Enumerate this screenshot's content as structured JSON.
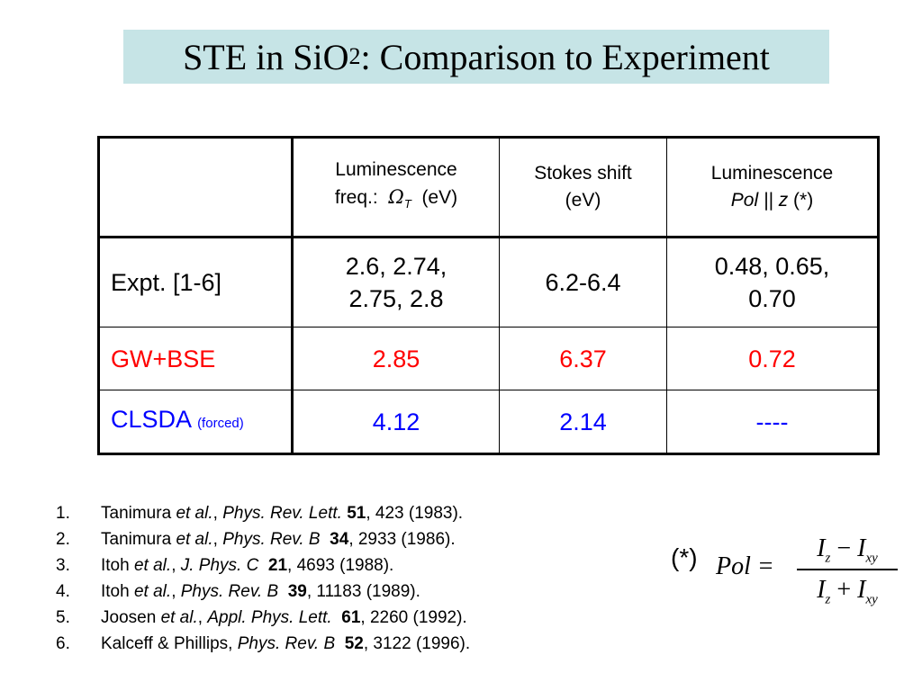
{
  "title": {
    "prefix": "STE in SiO",
    "sub": "2",
    "suffix": ": Comparison to Experiment"
  },
  "table": {
    "headers": {
      "col1_line1": "Luminescence",
      "col1_line2_prefix": "freq.:",
      "col1_symbol": "Ω",
      "col1_symbol_sub": "T",
      "col1_unit": "(eV)",
      "col2_line1": "Stokes shift",
      "col2_line2": "(eV)",
      "col3_line1": "Luminescence",
      "col3_line2_ital": "Pol || z",
      "col3_line2_suffix": "(*)"
    },
    "rows": [
      {
        "label": "Expt. [1-6]",
        "freq_line1": "2.6, 2.74,",
        "freq_line2": "2.75, 2.8",
        "stokes": "6.2-6.4",
        "pol_line1": "0.48, 0.65,",
        "pol_line2": "0.70",
        "color": "#000000"
      },
      {
        "label": "GW+BSE",
        "freq": "2.85",
        "stokes": "6.37",
        "pol": "0.72",
        "color": "#ff0000"
      },
      {
        "label": "CLSDA",
        "label_note": "(forced)",
        "freq": "4.12",
        "stokes": "2.14",
        "pol": "----",
        "color": "#0000ff"
      }
    ]
  },
  "references": [
    {
      "num": "1.",
      "author": "Tanimura",
      "etal": "et al.",
      "journal": "Phys. Rev. Lett.",
      "vol": "51",
      "rest": ", 423 (1983)."
    },
    {
      "num": "2.",
      "author": "Tanimura",
      "etal": "et al.",
      "journal": "Phys. Rev. B",
      "vol": "34",
      "rest": ", 2933 (1986)."
    },
    {
      "num": "3.",
      "author": "Itoh",
      "etal": "et al.",
      "journal": "J. Phys. C",
      "vol": "21",
      "rest": ", 4693 (1988)."
    },
    {
      "num": "4.",
      "author": "Itoh",
      "etal": "et al.",
      "journal": "Phys. Rev. B",
      "vol": "39",
      "rest": ", 11183 (1989)."
    },
    {
      "num": "5.",
      "author": "Joosen",
      "etal": "et al.",
      "journal": "Appl. Phys. Lett.",
      "vol": "61",
      "rest": ", 2260 (1992)."
    },
    {
      "num": "6.",
      "author": "Kalceff & Phillips,",
      "etal": "",
      "journal": "Phys. Rev. B",
      "vol": "52",
      "rest": ", 3122 (1996)."
    }
  ],
  "formula": {
    "marker": "(*)",
    "lhs": "Pol =",
    "I": "I",
    "sub_z": "z",
    "sub_xy": "xy",
    "minus": " − ",
    "plus": " + "
  },
  "colors": {
    "title_bg": "#c6e4e6",
    "gwbse": "#ff0000",
    "clsda": "#0000ff"
  }
}
